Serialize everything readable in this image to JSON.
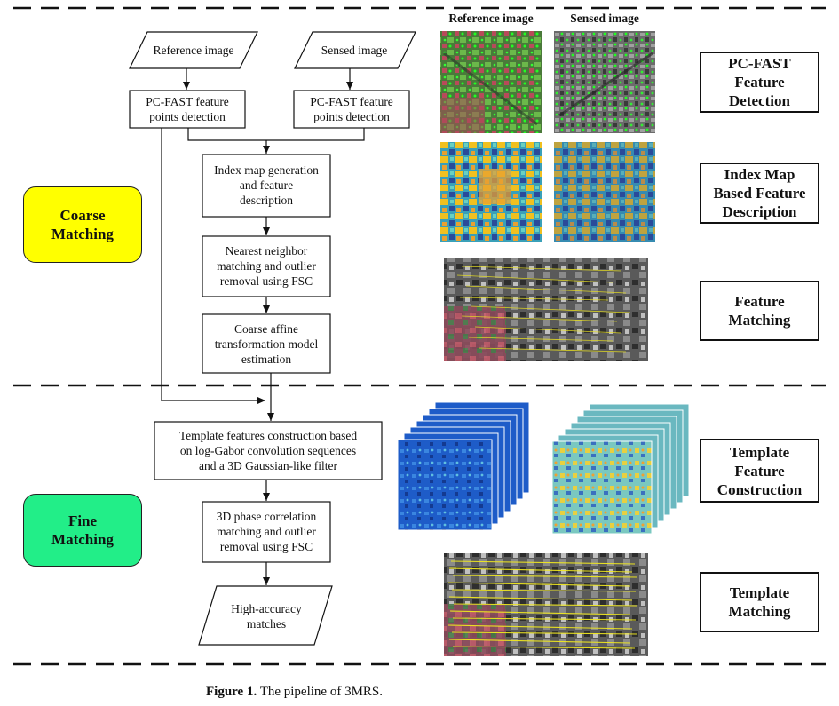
{
  "column_headers": {
    "reference": "Reference image",
    "sensed": "Sensed image"
  },
  "phases": {
    "coarse": [
      "Coarse",
      "Matching"
    ],
    "fine": [
      "Fine",
      "Matching"
    ]
  },
  "phase_colors": {
    "coarse": "#ffff00",
    "fine": "#22ee88"
  },
  "flowchart": {
    "reference_input": "Reference image",
    "sensed_input": "Sensed image",
    "detect_ref": [
      "PC-FAST feature",
      "points detection"
    ],
    "detect_sensed": [
      "PC-FAST feature",
      "points detection"
    ],
    "index_map": [
      "Index map generation",
      "and feature",
      "description"
    ],
    "nn_matching": [
      "Nearest neighbor",
      "matching and outlier",
      "removal using FSC"
    ],
    "coarse_affine": [
      "Coarse affine",
      "transformation model",
      "estimation"
    ],
    "template_construction": [
      "Template features construction based",
      "on log-Gabor convolution sequences",
      "and a 3D Gaussian-like filter"
    ],
    "phase_correlation": [
      "3D phase correlation",
      "matching and outlier",
      "removal using FSC"
    ],
    "output": [
      "High-accuracy",
      "matches"
    ]
  },
  "stages": {
    "pcfast": [
      "PC-FAST",
      "Feature",
      "Detection"
    ],
    "index_map": [
      "Index Map",
      "Based Feature",
      "Description"
    ],
    "feature_matching": [
      "Feature",
      "Matching"
    ],
    "template_construction": [
      "Template",
      "Feature",
      "Construction"
    ],
    "template_matching": [
      "Template",
      "Matching"
    ]
  },
  "caption": {
    "label": "Figure 1.",
    "text": " The pipeline of 3MRS."
  }
}
